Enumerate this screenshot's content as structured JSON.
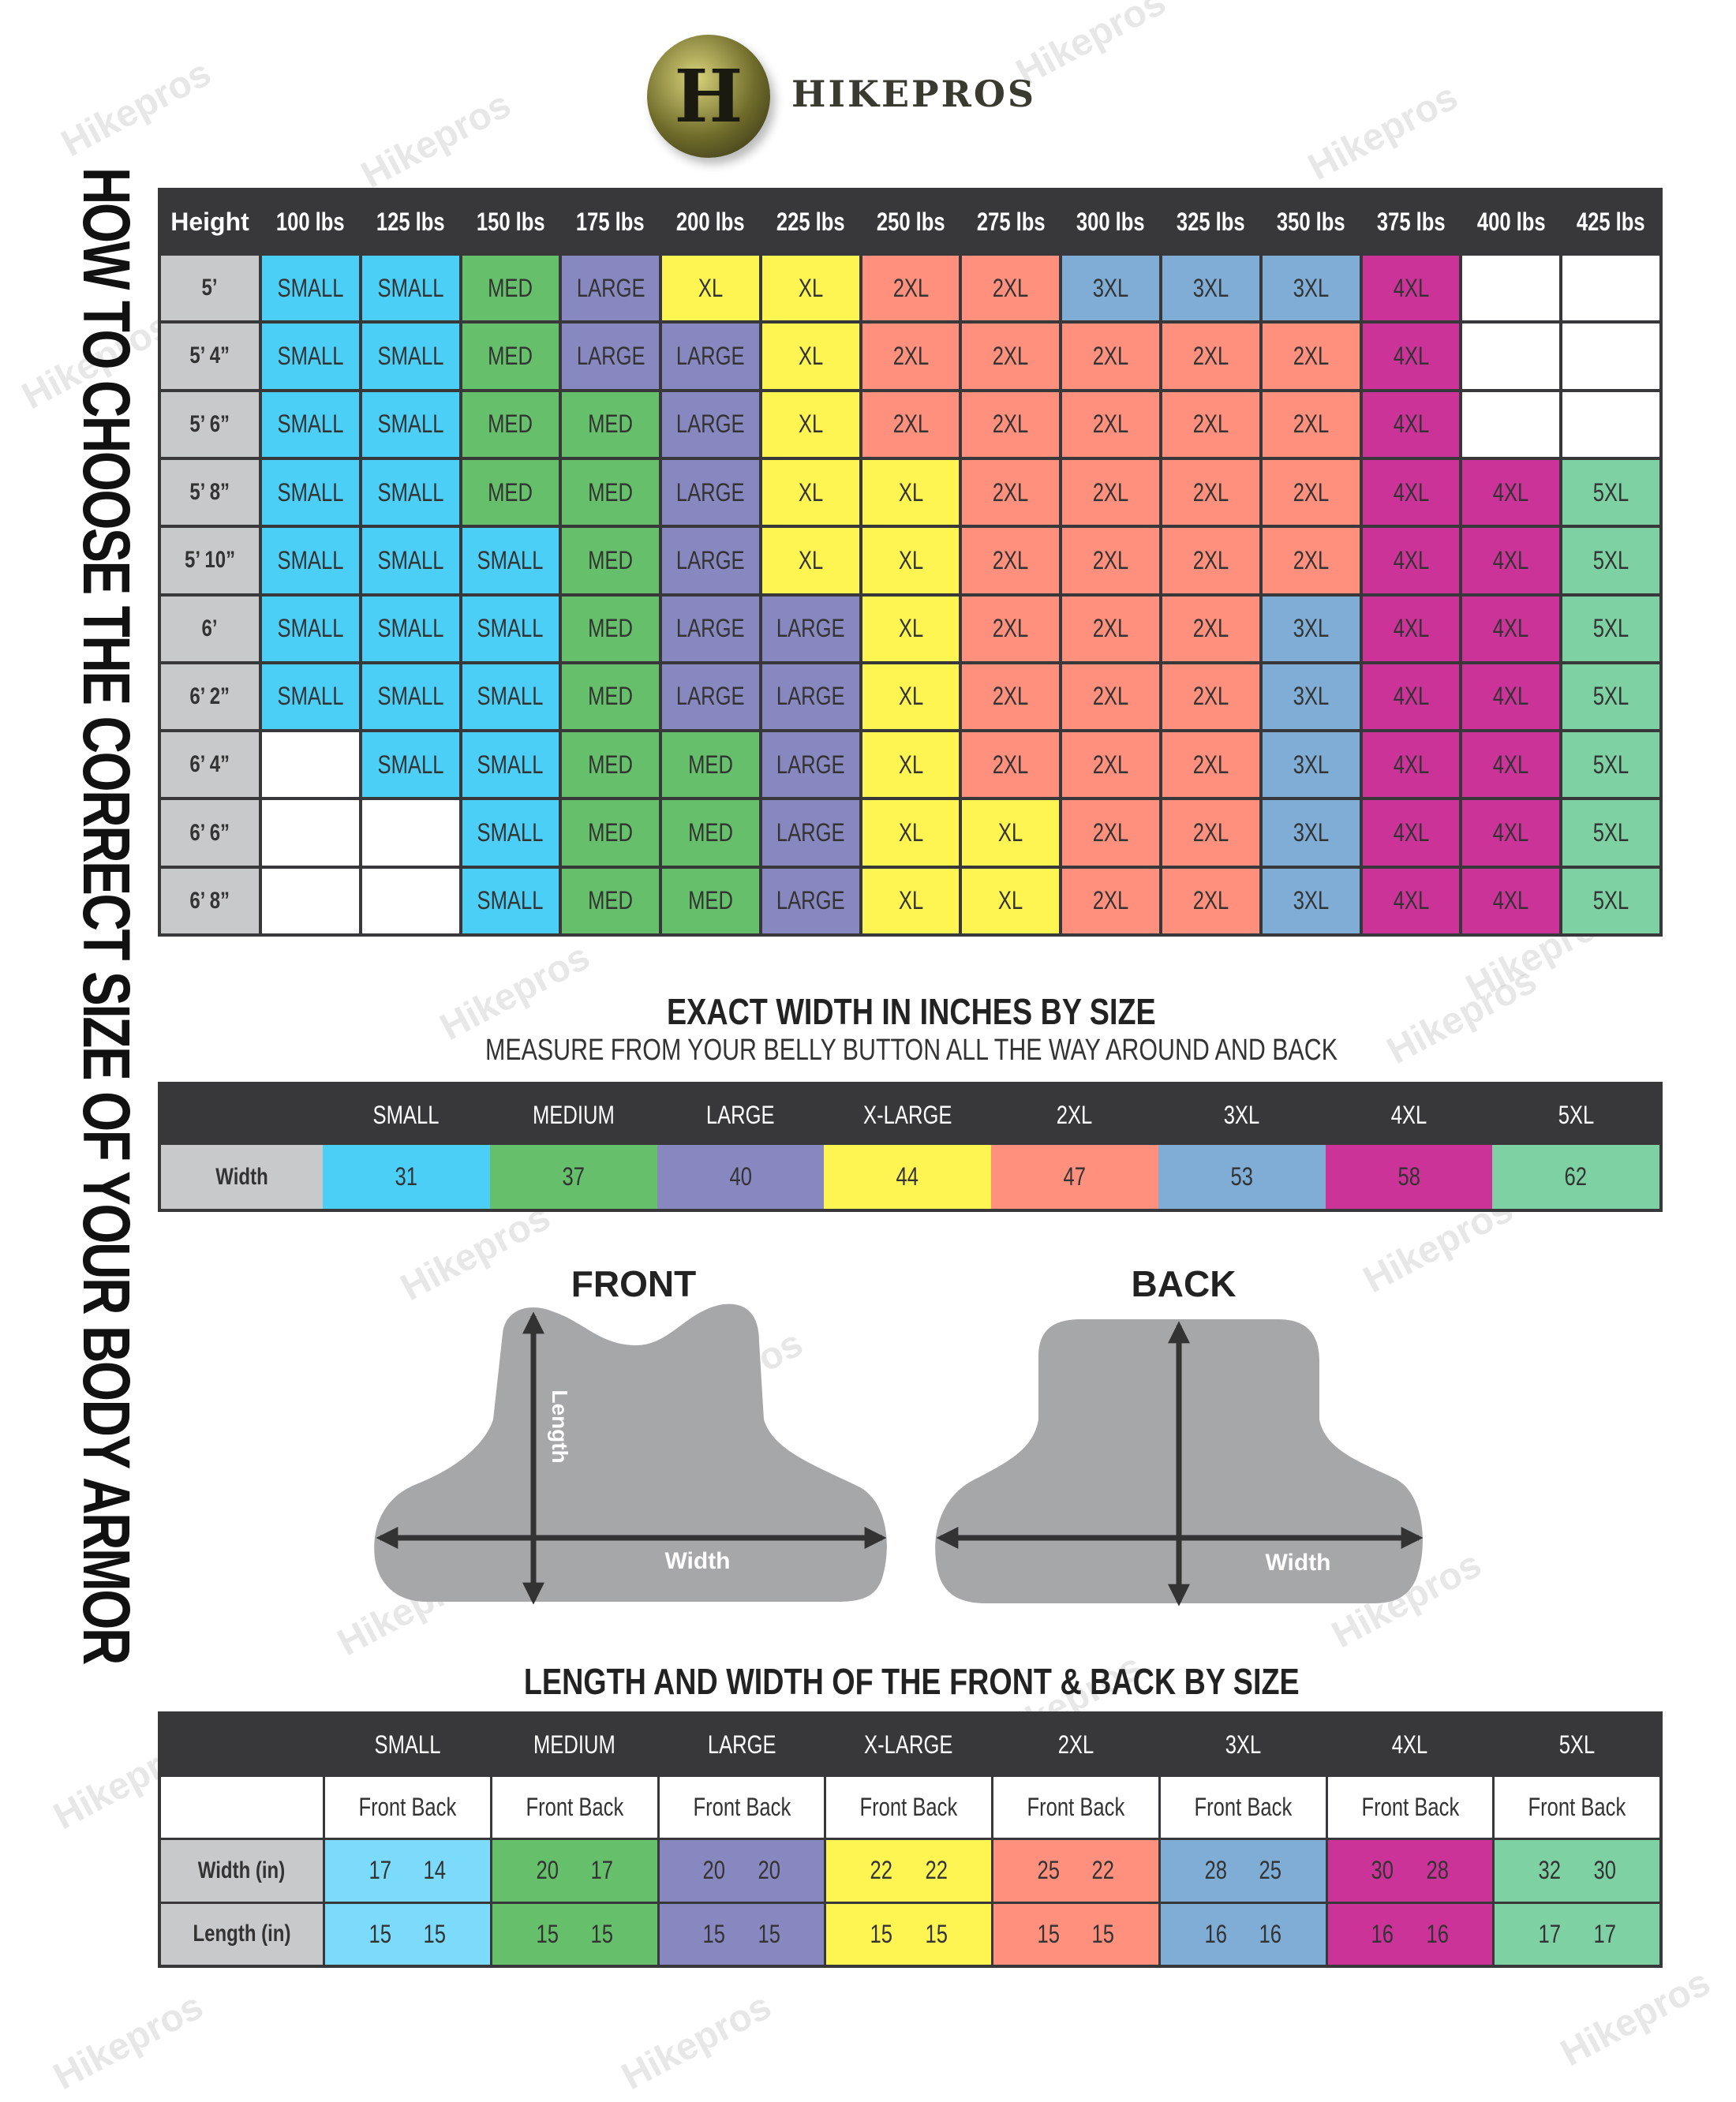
{
  "brand": {
    "name": "HIKEPROS",
    "logo_letter": "H",
    "watermark_text": "Hikepros"
  },
  "vertical_title": "HOW TO CHOOSE THE CORRECT SIZE OF YOUR BODY ARMOR",
  "colors": {
    "SMALL": "#4ccff7",
    "MED": "#66bf6a",
    "LARGE": "#8888c0",
    "XL": "#fff552",
    "2XL": "#ff907e",
    "3XL": "#7fadd6",
    "4XL": "#cc3399",
    "5XL": "#7dd1a3",
    "SMALL_light": "#7cdafb",
    "header": "#38373a",
    "label": "#c8c9cb"
  },
  "size_chart": {
    "corner": "Height",
    "weights": [
      "100 lbs",
      "125 lbs",
      "150 lbs",
      "175 lbs",
      "200 lbs",
      "225 lbs",
      "250 lbs",
      "275 lbs",
      "300 lbs",
      "325 lbs",
      "350 lbs",
      "375 lbs",
      "400 lbs",
      "425 lbs"
    ],
    "rows": [
      {
        "height": "5’",
        "sizes": [
          "SMALL",
          "SMALL",
          "MED",
          "LARGE",
          "XL",
          "XL",
          "2XL",
          "2XL",
          "3XL",
          "3XL",
          "3XL",
          "4XL",
          "",
          ""
        ]
      },
      {
        "height": "5’ 4”",
        "sizes": [
          "SMALL",
          "SMALL",
          "MED",
          "LARGE",
          "LARGE",
          "XL",
          "2XL",
          "2XL",
          "2XL",
          "2XL",
          "2XL",
          "4XL",
          "",
          ""
        ]
      },
      {
        "height": "5’ 6”",
        "sizes": [
          "SMALL",
          "SMALL",
          "MED",
          "MED",
          "LARGE",
          "XL",
          "2XL",
          "2XL",
          "2XL",
          "2XL",
          "2XL",
          "4XL",
          "",
          ""
        ]
      },
      {
        "height": "5’ 8”",
        "sizes": [
          "SMALL",
          "SMALL",
          "MED",
          "MED",
          "LARGE",
          "XL",
          "XL",
          "2XL",
          "2XL",
          "2XL",
          "2XL",
          "4XL",
          "4XL",
          "5XL"
        ]
      },
      {
        "height": "5’ 10”",
        "sizes": [
          "SMALL",
          "SMALL",
          "SMALL",
          "MED",
          "LARGE",
          "XL",
          "XL",
          "2XL",
          "2XL",
          "2XL",
          "2XL",
          "4XL",
          "4XL",
          "5XL"
        ]
      },
      {
        "height": "6’",
        "sizes": [
          "SMALL",
          "SMALL",
          "SMALL",
          "MED",
          "LARGE",
          "LARGE",
          "XL",
          "2XL",
          "2XL",
          "2XL",
          "3XL",
          "4XL",
          "4XL",
          "5XL"
        ]
      },
      {
        "height": "6’ 2”",
        "sizes": [
          "SMALL",
          "SMALL",
          "SMALL",
          "MED",
          "LARGE",
          "LARGE",
          "XL",
          "2XL",
          "2XL",
          "2XL",
          "3XL",
          "4XL",
          "4XL",
          "5XL"
        ]
      },
      {
        "height": "6’ 4”",
        "sizes": [
          "",
          "SMALL",
          "SMALL",
          "MED",
          "MED",
          "LARGE",
          "XL",
          "2XL",
          "2XL",
          "2XL",
          "3XL",
          "4XL",
          "4XL",
          "5XL"
        ]
      },
      {
        "height": "6’ 6”",
        "sizes": [
          "",
          "",
          "SMALL",
          "MED",
          "MED",
          "LARGE",
          "XL",
          "XL",
          "2XL",
          "2XL",
          "3XL",
          "4XL",
          "4XL",
          "5XL"
        ]
      },
      {
        "height": "6’ 8”",
        "sizes": [
          "",
          "",
          "SMALL",
          "MED",
          "MED",
          "LARGE",
          "XL",
          "XL",
          "2XL",
          "2XL",
          "3XL",
          "4XL",
          "4XL",
          "5XL"
        ]
      }
    ]
  },
  "width_section": {
    "title": "EXACT WIDTH IN INCHES BY SIZE",
    "subtitle": "MEASURE FROM YOUR BELLY BUTTON ALL THE WAY AROUND AND BACK",
    "row_label": "Width",
    "sizes": [
      {
        "label": "SMALL",
        "key": "SMALL",
        "width": "31"
      },
      {
        "label": "MEDIUM",
        "key": "MED",
        "width": "37"
      },
      {
        "label": "LARGE",
        "key": "LARGE",
        "width": "40"
      },
      {
        "label": "X-LARGE",
        "key": "XL",
        "width": "44"
      },
      {
        "label": "2XL",
        "key": "2XL",
        "width": "47"
      },
      {
        "label": "3XL",
        "key": "3XL",
        "width": "53"
      },
      {
        "label": "4XL",
        "key": "4XL",
        "width": "58"
      },
      {
        "label": "5XL",
        "key": "5XL",
        "width": "62"
      }
    ]
  },
  "diagrams": {
    "front": {
      "title": "FRONT",
      "length_label": "Length",
      "width_label": "Width"
    },
    "back": {
      "title": "BACK",
      "width_label": "Width"
    }
  },
  "plate_section": {
    "title": "LENGTH AND WIDTH OF THE FRONT & BACK BY SIZE",
    "front_label": "Front",
    "back_label": "Back",
    "width_label": "Width (in)",
    "length_label": "Length (in)",
    "sizes": [
      {
        "label": "SMALL",
        "key": "SMALL_light",
        "width": [
          "17",
          "14"
        ],
        "length": [
          "15",
          "15"
        ]
      },
      {
        "label": "MEDIUM",
        "key": "MED",
        "width": [
          "20",
          "17"
        ],
        "length": [
          "15",
          "15"
        ]
      },
      {
        "label": "LARGE",
        "key": "LARGE",
        "width": [
          "20",
          "20"
        ],
        "length": [
          "15",
          "15"
        ]
      },
      {
        "label": "X-LARGE",
        "key": "XL",
        "width": [
          "22",
          "22"
        ],
        "length": [
          "15",
          "15"
        ]
      },
      {
        "label": "2XL",
        "key": "2XL",
        "width": [
          "25",
          "22"
        ],
        "length": [
          "15",
          "15"
        ]
      },
      {
        "label": "3XL",
        "key": "3XL",
        "width": [
          "28",
          "25"
        ],
        "length": [
          "16",
          "16"
        ]
      },
      {
        "label": "4XL",
        "key": "4XL",
        "width": [
          "30",
          "28"
        ],
        "length": [
          "16",
          "16"
        ]
      },
      {
        "label": "5XL",
        "key": "5XL",
        "width": [
          "32",
          "30"
        ],
        "length": [
          "17",
          "17"
        ]
      }
    ]
  }
}
